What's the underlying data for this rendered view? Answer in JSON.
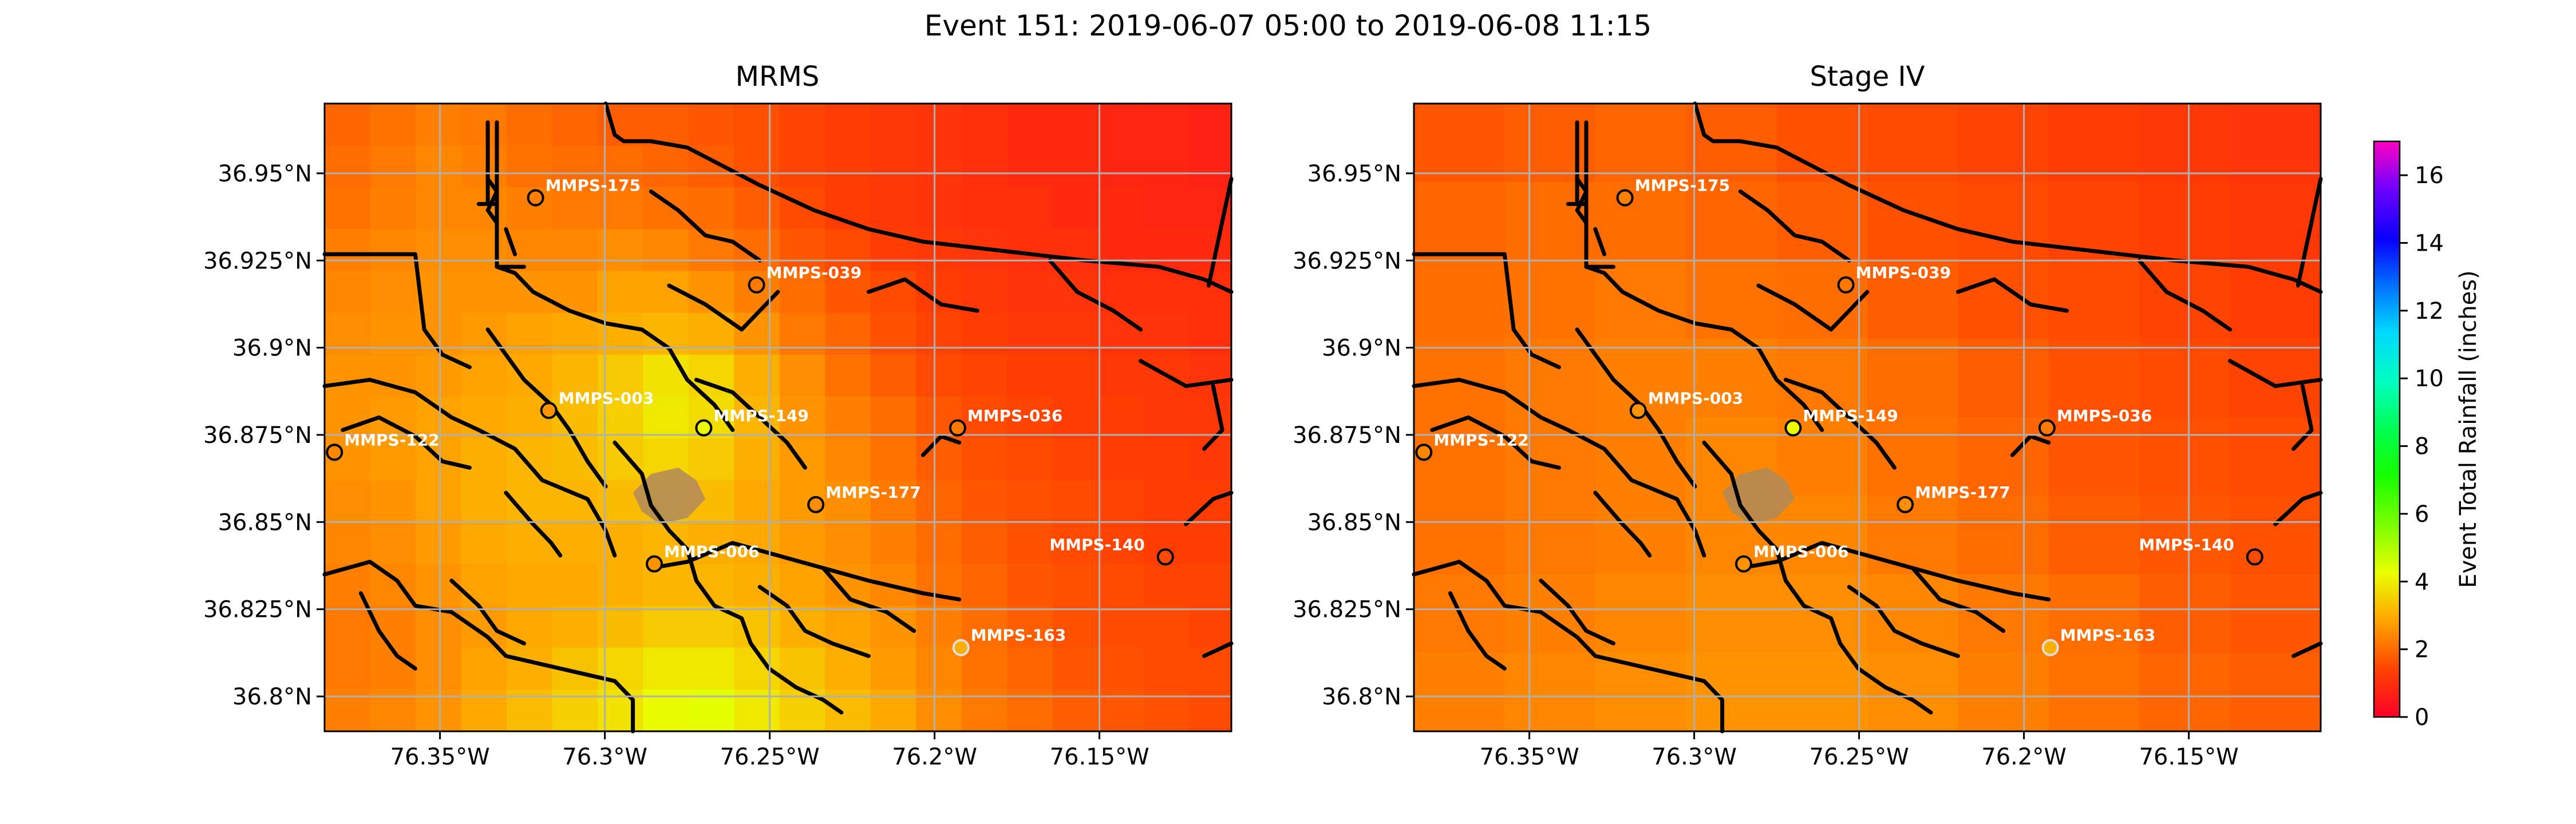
{
  "figure": {
    "suptitle": "Event 151: 2019-06-07 05:00 to 2019-06-08 11:15"
  },
  "chart_data": [
    {
      "type": "heatmap",
      "title": "MRMS",
      "xlim": [
        -76.385,
        -76.11
      ],
      "ylim": [
        36.79,
        36.97
      ],
      "grid": true,
      "xtick_values": [
        -76.35,
        -76.3,
        -76.25,
        -76.2,
        -76.15
      ],
      "xtick_labels": [
        "76.35°W",
        "76.3°W",
        "76.25°W",
        "76.2°W",
        "76.15°W"
      ],
      "ytick_values": [
        36.8,
        36.825,
        36.85,
        36.875,
        36.9,
        36.925,
        36.95
      ],
      "ytick_labels": [
        "36.8°N",
        "36.825°N",
        "36.85°N",
        "36.875°N",
        "36.9°N",
        "36.925°N",
        "36.95°N"
      ],
      "stations": [
        {
          "name": "MMPS-175",
          "lon": -76.321,
          "lat": 36.943,
          "value": 2.3
        },
        {
          "name": "MMPS-039",
          "lon": -76.254,
          "lat": 36.918,
          "value": 2.2
        },
        {
          "name": "MMPS-003",
          "lon": -76.317,
          "lat": 36.882,
          "value": 2.6
        },
        {
          "name": "MMPS-149",
          "lon": -76.27,
          "lat": 36.877,
          "value": 4.2
        },
        {
          "name": "MMPS-036",
          "lon": -76.193,
          "lat": 36.877,
          "value": 2.2
        },
        {
          "name": "MMPS-122",
          "lon": -76.382,
          "lat": 36.87,
          "value": 2.4
        },
        {
          "name": "MMPS-177",
          "lon": -76.236,
          "lat": 36.855,
          "value": 2.5
        },
        {
          "name": "MMPS-140",
          "lon": -76.13,
          "lat": 36.84,
          "value": 1.5
        },
        {
          "name": "MMPS-006",
          "lon": -76.285,
          "lat": 36.838,
          "value": 2.6
        },
        {
          "name": "MMPS-163",
          "lon": -76.192,
          "lat": 36.814,
          "value": 3.0
        }
      ],
      "rainfall_grid": {
        "lon_min": -76.385,
        "lat_max": 36.97,
        "cell_deg_lon": 0.0138,
        "cell_deg_lat": 0.012,
        "rows": [
          [
            1.9,
            2.1,
            2.3,
            2.2,
            2.0,
            1.9,
            1.8,
            1.8,
            1.7,
            1.6,
            1.4,
            1.3,
            1.2,
            1.1,
            1.0,
            0.9,
            0.9,
            0.8,
            0.8,
            0.7
          ],
          [
            2.0,
            2.2,
            2.4,
            2.3,
            2.1,
            2.0,
            2.0,
            1.9,
            1.8,
            1.6,
            1.4,
            1.3,
            1.2,
            1.1,
            1.0,
            0.9,
            0.9,
            0.8,
            0.8,
            0.7
          ],
          [
            2.1,
            2.3,
            2.4,
            2.4,
            2.3,
            2.2,
            2.2,
            2.1,
            2.0,
            1.8,
            1.5,
            1.3,
            1.2,
            1.1,
            1.0,
            1.0,
            0.9,
            0.9,
            0.8,
            0.8
          ],
          [
            2.3,
            2.4,
            2.5,
            2.5,
            2.4,
            2.4,
            2.5,
            2.4,
            2.2,
            2.0,
            1.7,
            1.5,
            1.3,
            1.2,
            1.1,
            1.0,
            1.0,
            0.9,
            0.9,
            0.9
          ],
          [
            2.4,
            2.5,
            2.6,
            2.6,
            2.6,
            2.6,
            2.8,
            2.8,
            2.6,
            2.3,
            2.0,
            1.7,
            1.5,
            1.3,
            1.2,
            1.1,
            1.1,
            1.0,
            1.0,
            1.0
          ],
          [
            2.5,
            2.6,
            2.6,
            2.7,
            2.8,
            2.9,
            3.0,
            3.1,
            3.0,
            2.6,
            2.2,
            1.9,
            1.6,
            1.4,
            1.3,
            1.2,
            1.2,
            1.1,
            1.1,
            1.0
          ],
          [
            2.6,
            2.6,
            2.7,
            2.8,
            2.9,
            3.1,
            3.4,
            3.8,
            3.6,
            3.0,
            2.5,
            2.1,
            1.8,
            1.5,
            1.4,
            1.3,
            1.3,
            1.2,
            1.2,
            1.1
          ],
          [
            2.6,
            2.7,
            2.8,
            2.9,
            3.0,
            3.2,
            3.5,
            3.9,
            3.7,
            3.1,
            2.6,
            2.3,
            2.0,
            1.7,
            1.5,
            1.4,
            1.3,
            1.3,
            1.2,
            1.2
          ],
          [
            2.6,
            2.7,
            2.8,
            3.0,
            3.1,
            3.2,
            3.4,
            3.6,
            3.4,
            3.0,
            2.7,
            2.4,
            2.1,
            1.8,
            1.6,
            1.5,
            1.4,
            1.3,
            1.3,
            1.2
          ],
          [
            2.5,
            2.6,
            2.8,
            3.0,
            3.1,
            3.1,
            3.2,
            3.3,
            3.2,
            2.9,
            2.7,
            2.5,
            2.2,
            1.9,
            1.7,
            1.6,
            1.5,
            1.4,
            1.3,
            1.3
          ],
          [
            2.4,
            2.5,
            2.7,
            2.9,
            3.0,
            3.0,
            3.0,
            3.1,
            3.0,
            2.9,
            2.7,
            2.5,
            2.3,
            2.0,
            1.8,
            1.6,
            1.5,
            1.4,
            1.3,
            1.3
          ],
          [
            2.3,
            2.4,
            2.6,
            2.8,
            2.9,
            2.9,
            3.0,
            3.1,
            3.1,
            3.0,
            2.8,
            2.6,
            2.4,
            2.1,
            1.9,
            1.7,
            1.6,
            1.5,
            1.4,
            1.4
          ],
          [
            2.2,
            2.3,
            2.5,
            2.7,
            2.9,
            3.0,
            3.2,
            3.4,
            3.4,
            3.3,
            3.0,
            2.8,
            2.6,
            2.3,
            2.0,
            1.8,
            1.6,
            1.5,
            1.5,
            1.4
          ],
          [
            2.2,
            2.3,
            2.5,
            2.8,
            3.0,
            3.3,
            3.6,
            3.9,
            3.9,
            3.6,
            3.3,
            3.0,
            2.7,
            2.4,
            2.1,
            1.9,
            1.7,
            1.6,
            1.5,
            1.5
          ],
          [
            2.3,
            2.4,
            2.6,
            2.9,
            3.2,
            3.5,
            3.8,
            4.2,
            4.3,
            3.9,
            3.5,
            3.2,
            2.9,
            2.5,
            2.2,
            2.0,
            1.8,
            1.7,
            1.6,
            1.5
          ],
          [
            2.4,
            2.5,
            2.7,
            3.0,
            3.3,
            3.6,
            3.9,
            4.4,
            4.5,
            4.1,
            3.6,
            3.3,
            3.0,
            2.6,
            2.3,
            2.1,
            1.9,
            1.7,
            1.6,
            1.6
          ]
        ]
      }
    },
    {
      "type": "heatmap",
      "title": "Stage IV",
      "xlim": [
        -76.385,
        -76.11
      ],
      "ylim": [
        36.79,
        36.97
      ],
      "grid": true,
      "xtick_values": [
        -76.35,
        -76.3,
        -76.25,
        -76.2,
        -76.15
      ],
      "xtick_labels": [
        "76.35°W",
        "76.3°W",
        "76.25°W",
        "76.2°W",
        "76.15°W"
      ],
      "ytick_values": [
        36.8,
        36.825,
        36.85,
        36.875,
        36.9,
        36.925,
        36.95
      ],
      "ytick_labels": [
        "36.8°N",
        "36.825°N",
        "36.85°N",
        "36.875°N",
        "36.9°N",
        "36.925°N",
        "36.95°N"
      ],
      "stations": [
        {
          "name": "MMPS-175",
          "lon": -76.321,
          "lat": 36.943,
          "value": 2.3
        },
        {
          "name": "MMPS-039",
          "lon": -76.254,
          "lat": 36.918,
          "value": 2.2
        },
        {
          "name": "MMPS-003",
          "lon": -76.317,
          "lat": 36.882,
          "value": 2.6
        },
        {
          "name": "MMPS-149",
          "lon": -76.27,
          "lat": 36.877,
          "value": 4.2
        },
        {
          "name": "MMPS-036",
          "lon": -76.193,
          "lat": 36.877,
          "value": 2.2
        },
        {
          "name": "MMPS-122",
          "lon": -76.382,
          "lat": 36.87,
          "value": 2.4
        },
        {
          "name": "MMPS-177",
          "lon": -76.236,
          "lat": 36.855,
          "value": 2.5
        },
        {
          "name": "MMPS-140",
          "lon": -76.13,
          "lat": 36.84,
          "value": 1.5
        },
        {
          "name": "MMPS-006",
          "lon": -76.285,
          "lat": 36.838,
          "value": 2.6
        },
        {
          "name": "MMPS-163",
          "lon": -76.192,
          "lat": 36.814,
          "value": 3.0
        }
      ],
      "rainfall_grid": {
        "lon_min": -76.385,
        "lat_max": 36.97,
        "cell_deg_lon": 0.0275,
        "cell_deg_lat": 0.0225,
        "rows": [
          [
            1.7,
            1.8,
            1.9,
            1.8,
            1.6,
            1.5,
            1.4,
            1.3,
            1.2,
            1.1
          ],
          [
            1.9,
            2.0,
            2.0,
            1.9,
            1.8,
            1.6,
            1.5,
            1.4,
            1.3,
            1.2
          ],
          [
            2.0,
            2.1,
            2.2,
            2.1,
            2.0,
            1.8,
            1.6,
            1.5,
            1.4,
            1.3
          ],
          [
            2.1,
            2.2,
            2.3,
            2.3,
            2.2,
            2.0,
            1.8,
            1.6,
            1.5,
            1.4
          ],
          [
            2.1,
            2.2,
            2.3,
            2.4,
            2.3,
            2.1,
            1.9,
            1.7,
            1.6,
            1.5
          ],
          [
            2.1,
            2.2,
            2.3,
            2.4,
            2.4,
            2.2,
            2.0,
            1.8,
            1.7,
            1.6
          ],
          [
            2.2,
            2.3,
            2.4,
            2.5,
            2.5,
            2.4,
            2.2,
            2.0,
            1.8,
            1.7
          ],
          [
            2.3,
            2.4,
            2.5,
            2.6,
            2.6,
            2.5,
            2.3,
            2.1,
            1.9,
            1.8
          ]
        ]
      }
    }
  ],
  "colorbar": {
    "label": "Event Total Rainfall (inches)",
    "min": 0,
    "max": 17,
    "ticks": [
      "0",
      "2",
      "4",
      "6",
      "8",
      "10",
      "12",
      "14",
      "16"
    ],
    "tick_values": [
      0,
      2,
      4,
      6,
      8,
      10,
      12,
      14,
      16
    ],
    "colormap": "gist_rainbow_r"
  }
}
